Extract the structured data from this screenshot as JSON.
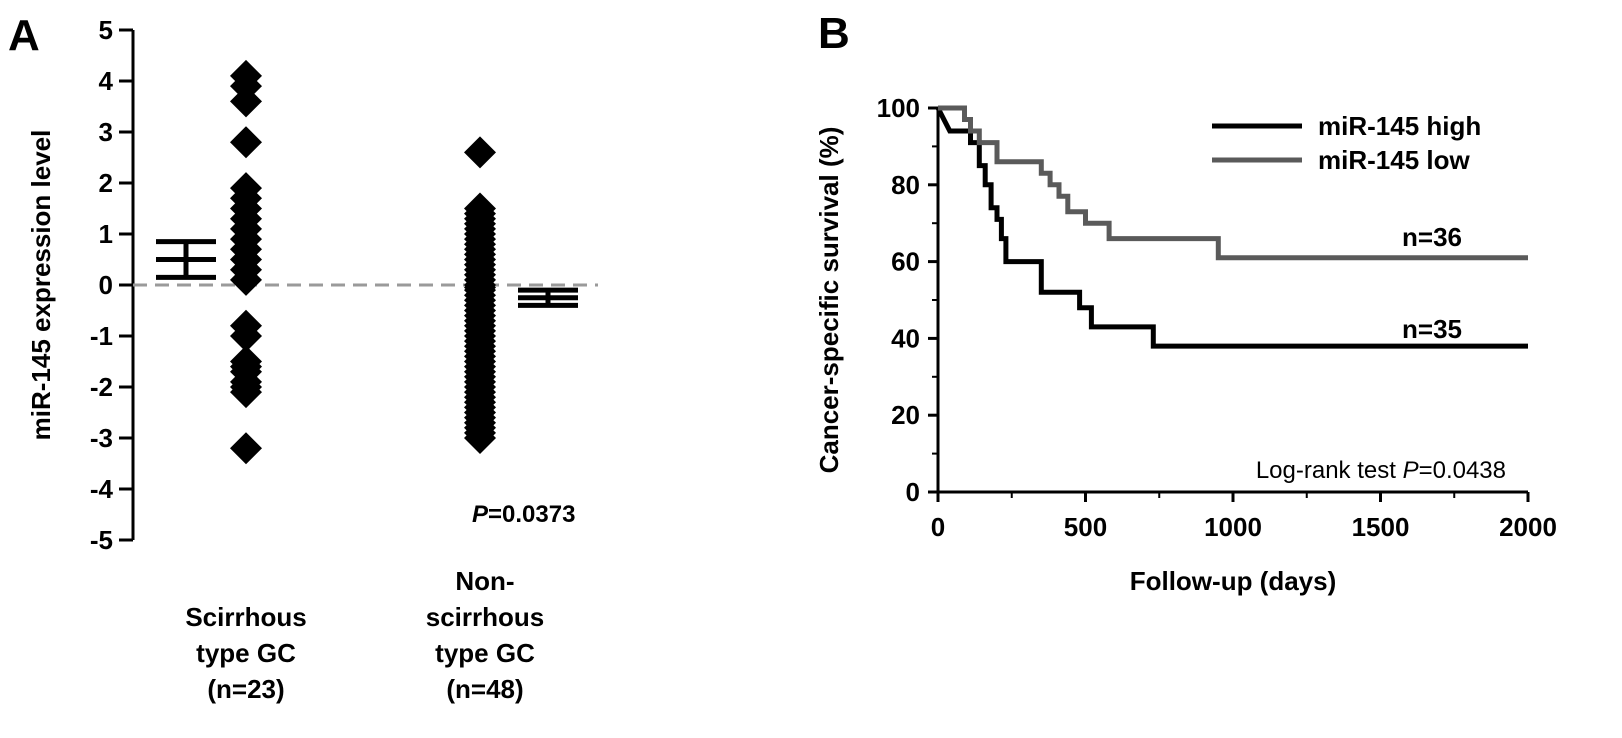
{
  "chart_data": [
    {
      "panel": "A",
      "type": "scatter",
      "ylabel": "miR-145 expression level",
      "ylim": [
        -5,
        5
      ],
      "yticks": [
        "5",
        "4",
        "3",
        "2",
        "1",
        "0",
        "-1",
        "-2",
        "-3",
        "-4",
        "-5"
      ],
      "groups": [
        {
          "label_lines": [
            "Scirrhous",
            "type GC",
            "(n=23)"
          ],
          "values": [
            4.1,
            3.9,
            3.6,
            2.8,
            1.9,
            1.7,
            1.5,
            1.3,
            1.1,
            0.9,
            0.7,
            0.5,
            0.3,
            0.1,
            -0.8,
            -1.0,
            -1.5,
            -1.6,
            -1.7,
            -1.9,
            -2.0,
            -2.1,
            -3.2
          ],
          "mean": 0.5,
          "sem": 0.35
        },
        {
          "label_lines": [
            "Non-",
            "scirrhous",
            "type GC",
            "(n=48)"
          ],
          "values": [
            2.6,
            1.5,
            1.4,
            1.3,
            1.2,
            1.1,
            1.0,
            0.9,
            0.8,
            0.7,
            0.6,
            0.5,
            0.4,
            0.3,
            0.2,
            0.1,
            0.0,
            -0.1,
            -0.2,
            -0.3,
            -0.4,
            -0.5,
            -0.6,
            -0.7,
            -0.8,
            -0.9,
            -1.0,
            -1.1,
            -1.2,
            -1.3,
            -1.4,
            -1.5,
            -1.6,
            -1.7,
            -1.8,
            -1.9,
            -2.0,
            -2.1,
            -2.2,
            -2.3,
            -2.4,
            -2.5,
            -2.6,
            -2.7,
            -2.8,
            -2.9,
            -3.0,
            -0.05
          ],
          "mean": -0.25,
          "sem": 0.15
        }
      ],
      "reference_line": 0,
      "p_label": "P",
      "p_value": "=0.0373"
    },
    {
      "panel": "B",
      "type": "line",
      "xlabel": "Follow-up (days)",
      "ylabel": "Cancer-specific survival (%)",
      "xlim": [
        0,
        2000
      ],
      "ylim": [
        0,
        100
      ],
      "xticks": [
        "0",
        "500",
        "1000",
        "1500",
        "2000"
      ],
      "yticks": [
        "0",
        "20",
        "40",
        "60",
        "80",
        "100"
      ],
      "series": [
        {
          "name": "miR-145 high",
          "color": "#000000",
          "n_label": "n=35",
          "points": [
            [
              0,
              100
            ],
            [
              20,
              97
            ],
            [
              40,
              94
            ],
            [
              110,
              94
            ],
            [
              110,
              91
            ],
            [
              140,
              91
            ],
            [
              140,
              85
            ],
            [
              160,
              85
            ],
            [
              160,
              80
            ],
            [
              180,
              80
            ],
            [
              180,
              74
            ],
            [
              200,
              74
            ],
            [
              200,
              71
            ],
            [
              215,
              71
            ],
            [
              215,
              66
            ],
            [
              230,
              66
            ],
            [
              230,
              60
            ],
            [
              350,
              60
            ],
            [
              350,
              52
            ],
            [
              480,
              52
            ],
            [
              480,
              48
            ],
            [
              520,
              48
            ],
            [
              520,
              43
            ],
            [
              730,
              43
            ],
            [
              730,
              38
            ],
            [
              2000,
              38
            ]
          ]
        },
        {
          "name": "miR-145 low",
          "color": "#5a5a5a",
          "n_label": "n=36",
          "points": [
            [
              0,
              100
            ],
            [
              90,
              100
            ],
            [
              90,
              97
            ],
            [
              110,
              97
            ],
            [
              110,
              94
            ],
            [
              140,
              94
            ],
            [
              140,
              91
            ],
            [
              200,
              91
            ],
            [
              200,
              86
            ],
            [
              350,
              86
            ],
            [
              350,
              83
            ],
            [
              380,
              83
            ],
            [
              380,
              80
            ],
            [
              410,
              80
            ],
            [
              410,
              77
            ],
            [
              440,
              77
            ],
            [
              440,
              73
            ],
            [
              500,
              73
            ],
            [
              500,
              70
            ],
            [
              580,
              70
            ],
            [
              580,
              66
            ],
            [
              950,
              66
            ],
            [
              950,
              61
            ],
            [
              2000,
              61
            ]
          ]
        }
      ],
      "annotation_text": "Log-rank test ",
      "annotation_p": "P",
      "annotation_value": "=0.0438"
    }
  ],
  "panel_labels": [
    "A",
    "B"
  ]
}
